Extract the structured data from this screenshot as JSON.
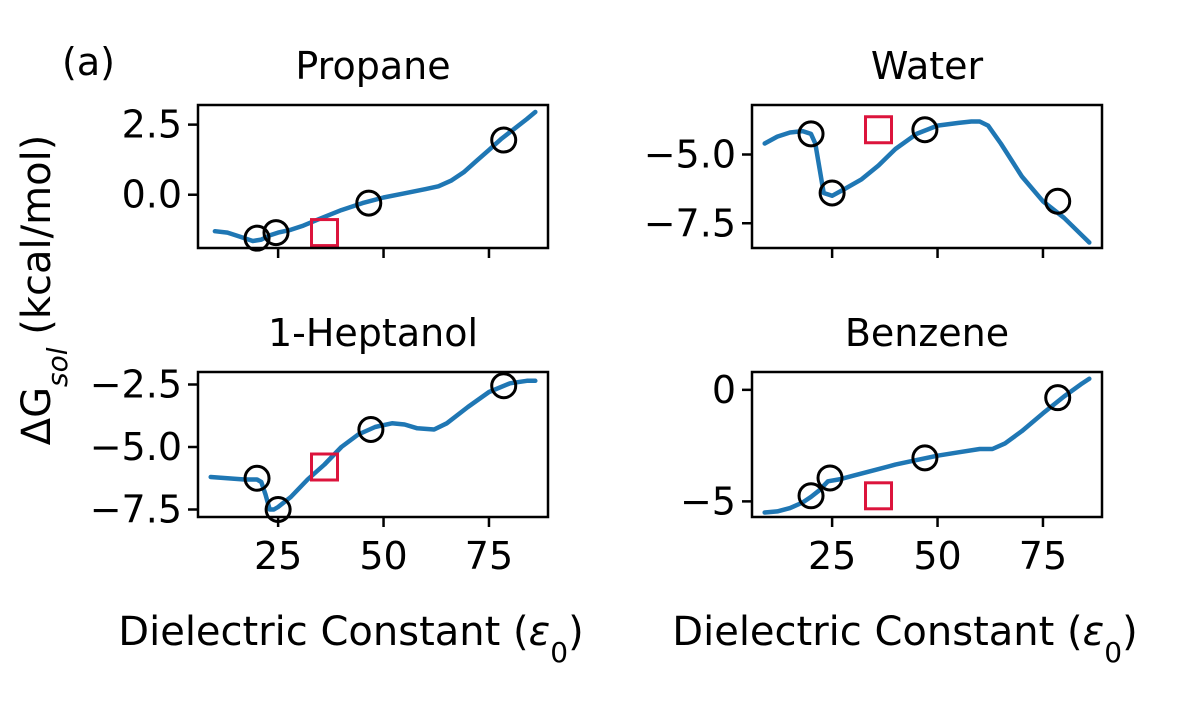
{
  "panel_label": "(a)",
  "ylabel_shared": "ΔG_sol (kcal/mol)",
  "colors": {
    "line": "#1f77b4",
    "circle": "#000000",
    "square": "#dc143c",
    "axis": "#000000"
  },
  "chart_data": [
    {
      "type": "line",
      "title": "Propane",
      "xlabel": "",
      "ylabel": "",
      "xlim": [
        6,
        89
      ],
      "ylim": [
        -1.9,
        3.2
      ],
      "xticks": [
        25,
        50,
        75
      ],
      "xticklabels": [
        "",
        "",
        ""
      ],
      "yticks": [
        0,
        2.5
      ],
      "yticklabels": [
        "0.0",
        "2.5"
      ],
      "grid": false,
      "series": [
        {
          "kind": "line",
          "x": [
            10,
            13,
            16,
            19,
            21,
            23,
            25,
            28,
            31,
            35,
            40,
            45,
            50,
            55,
            60,
            63,
            66,
            69,
            72,
            75,
            78,
            81,
            84,
            86
          ],
          "y": [
            -1.3,
            -1.35,
            -1.5,
            -1.65,
            -1.6,
            -1.45,
            -1.35,
            -1.25,
            -1.1,
            -0.85,
            -0.55,
            -0.3,
            -0.1,
            0.05,
            0.2,
            0.3,
            0.5,
            0.8,
            1.2,
            1.6,
            2.0,
            2.35,
            2.7,
            2.95
          ]
        },
        {
          "kind": "circles",
          "x": [
            20,
            24.5,
            46.5,
            78.5
          ],
          "y": [
            -1.55,
            -1.35,
            -0.3,
            1.95
          ]
        },
        {
          "kind": "squares",
          "x": [
            36
          ],
          "y": [
            -1.35
          ]
        }
      ]
    },
    {
      "type": "line",
      "title": "Water",
      "xlabel": "",
      "ylabel": "",
      "xlim": [
        6,
        89
      ],
      "ylim": [
        -8.4,
        -3.2
      ],
      "xticks": [
        25,
        50,
        75
      ],
      "xticklabels": [
        "",
        "",
        ""
      ],
      "yticks": [
        -7.5,
        -5.0
      ],
      "yticklabels": [
        "−7.5",
        "−5.0"
      ],
      "grid": false,
      "series": [
        {
          "kind": "line",
          "x": [
            9,
            12,
            15,
            18,
            20,
            21,
            22,
            23,
            25,
            28,
            32,
            36,
            40,
            45,
            50,
            55,
            58,
            60,
            62,
            65,
            70,
            75,
            80,
            84,
            86
          ],
          "y": [
            -4.6,
            -4.35,
            -4.2,
            -4.15,
            -4.25,
            -4.6,
            -5.5,
            -6.4,
            -6.5,
            -6.25,
            -5.9,
            -5.4,
            -4.8,
            -4.25,
            -3.95,
            -3.85,
            -3.8,
            -3.8,
            -3.95,
            -4.6,
            -5.8,
            -6.7,
            -7.3,
            -7.9,
            -8.2
          ]
        },
        {
          "kind": "circles",
          "x": [
            20,
            25,
            47,
            78.5
          ],
          "y": [
            -4.25,
            -6.4,
            -4.1,
            -6.7
          ]
        },
        {
          "kind": "squares",
          "x": [
            36
          ],
          "y": [
            -4.1
          ]
        }
      ]
    },
    {
      "type": "line",
      "title": "1-Heptanol",
      "xlabel": "Dielectric Constant (ε0)",
      "ylabel": "",
      "xlim": [
        6,
        89
      ],
      "ylim": [
        -7.8,
        -2.0
      ],
      "xticks": [
        25,
        50,
        75
      ],
      "xticklabels": [
        "25",
        "50",
        "75"
      ],
      "yticks": [
        -7.5,
        -5.0,
        -2.5
      ],
      "yticklabels": [
        "−7.5",
        "−5.0",
        "−2.5"
      ],
      "grid": false,
      "series": [
        {
          "kind": "line",
          "x": [
            9,
            13,
            17,
            20,
            21,
            22,
            23,
            24,
            25,
            28,
            32,
            36,
            40,
            44,
            48,
            52,
            55,
            58,
            62,
            65,
            70,
            75,
            80,
            84,
            86
          ],
          "y": [
            -6.2,
            -6.25,
            -6.3,
            -6.3,
            -6.4,
            -6.9,
            -7.5,
            -7.5,
            -7.4,
            -7.0,
            -6.3,
            -5.7,
            -5.0,
            -4.5,
            -4.2,
            -4.05,
            -4.1,
            -4.25,
            -4.3,
            -4.05,
            -3.4,
            -2.8,
            -2.45,
            -2.35,
            -2.35
          ]
        },
        {
          "kind": "circles",
          "x": [
            20,
            25,
            47,
            78.5
          ],
          "y": [
            -6.25,
            -7.5,
            -4.3,
            -2.55
          ]
        },
        {
          "kind": "squares",
          "x": [
            36
          ],
          "y": [
            -5.8
          ]
        }
      ]
    },
    {
      "type": "line",
      "title": "Benzene",
      "xlabel": "Dielectric Constant (ε0)",
      "ylabel": "",
      "xlim": [
        6,
        89
      ],
      "ylim": [
        -5.7,
        0.8
      ],
      "xticks": [
        25,
        50,
        75
      ],
      "xticklabels": [
        "25",
        "50",
        "75"
      ],
      "yticks": [
        -5,
        0
      ],
      "yticklabels": [
        "−5",
        "0"
      ],
      "grid": false,
      "series": [
        {
          "kind": "line",
          "x": [
            9,
            12,
            15,
            18,
            20,
            22,
            24,
            27,
            30,
            35,
            40,
            45,
            50,
            55,
            60,
            63,
            66,
            70,
            75,
            80,
            84,
            86
          ],
          "y": [
            -5.5,
            -5.45,
            -5.3,
            -5.05,
            -4.8,
            -4.5,
            -4.1,
            -4.0,
            -3.85,
            -3.6,
            -3.35,
            -3.15,
            -2.95,
            -2.8,
            -2.65,
            -2.65,
            -2.4,
            -1.85,
            -1.05,
            -0.3,
            0.25,
            0.5
          ]
        },
        {
          "kind": "circles",
          "x": [
            20,
            24.5,
            47,
            78.5
          ],
          "y": [
            -4.75,
            -3.95,
            -3.05,
            -0.35
          ]
        },
        {
          "kind": "squares",
          "x": [
            36
          ],
          "y": [
            -4.75
          ]
        }
      ]
    }
  ]
}
